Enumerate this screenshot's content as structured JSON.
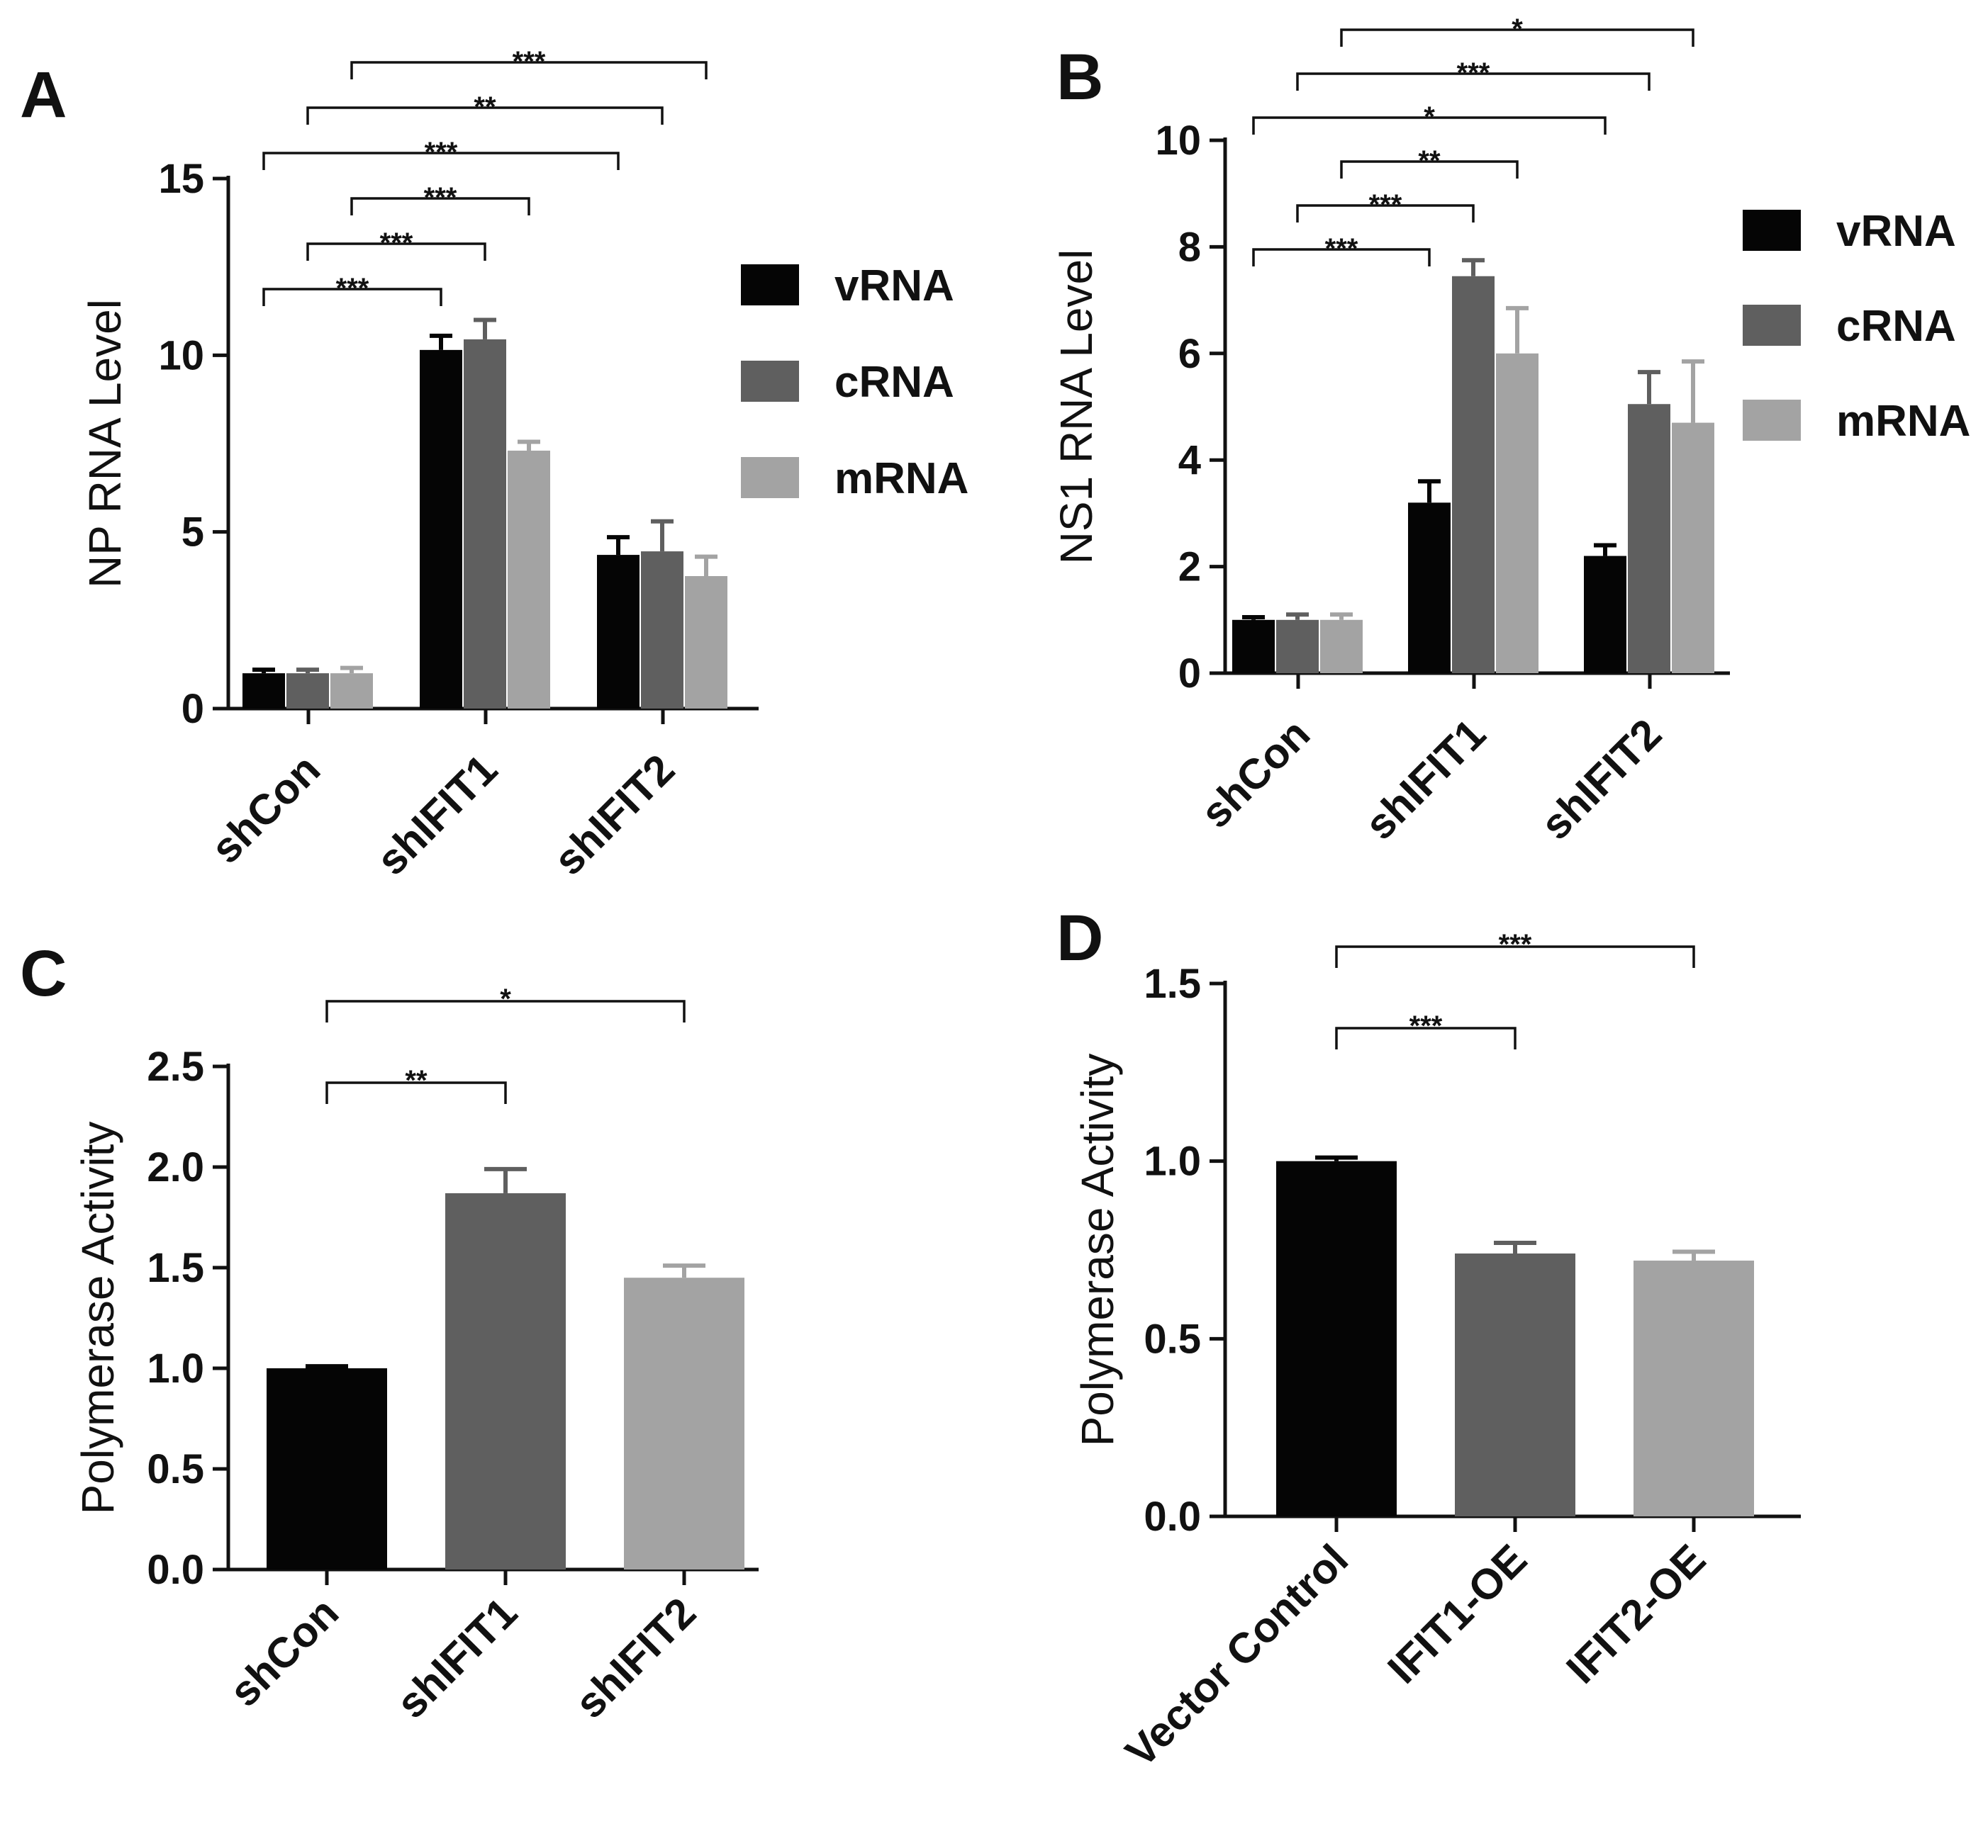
{
  "chart_data": [
    {
      "panel": "A",
      "type": "bar",
      "ylabel": "NP RNA Level",
      "ylim": [
        0,
        15
      ],
      "yticks": [
        0,
        5,
        10,
        15
      ],
      "ytick_labels": [
        "0",
        "5",
        "10",
        "15"
      ],
      "categories": [
        "shCon",
        "shIFIT1",
        "shIFIT2"
      ],
      "series": [
        {
          "name": "vRNA",
          "values": [
            1.0,
            10.15,
            4.35
          ],
          "errors": [
            0.1,
            0.4,
            0.5
          ]
        },
        {
          "name": "cRNA",
          "values": [
            1.0,
            10.45,
            4.45
          ],
          "errors": [
            0.1,
            0.55,
            0.85
          ]
        },
        {
          "name": "mRNA",
          "values": [
            1.0,
            7.3,
            3.75
          ],
          "errors": [
            0.15,
            0.25,
            0.55
          ]
        }
      ],
      "legend": {
        "entries": [
          "vRNA",
          "cRNA",
          "mRNA"
        ],
        "placement": "right"
      },
      "significance": [
        {
          "from": [
            0,
            0
          ],
          "to": [
            1,
            0
          ],
          "label": "***"
        },
        {
          "from": [
            0,
            1
          ],
          "to": [
            1,
            1
          ],
          "label": "***"
        },
        {
          "from": [
            0,
            2
          ],
          "to": [
            1,
            2
          ],
          "label": "***"
        },
        {
          "from": [
            0,
            0
          ],
          "to": [
            2,
            0
          ],
          "label": "***"
        },
        {
          "from": [
            0,
            1
          ],
          "to": [
            2,
            1
          ],
          "label": "**"
        },
        {
          "from": [
            0,
            2
          ],
          "to": [
            2,
            2
          ],
          "label": "***"
        }
      ]
    },
    {
      "panel": "B",
      "type": "bar",
      "ylabel": "NS1 RNA Level",
      "ylim": [
        0,
        10
      ],
      "yticks": [
        0,
        2,
        4,
        6,
        8,
        10
      ],
      "ytick_labels": [
        "0",
        "2",
        "4",
        "6",
        "8",
        "10"
      ],
      "categories": [
        "shCon",
        "shIFIT1",
        "shIFIT2"
      ],
      "series": [
        {
          "name": "vRNA",
          "values": [
            1.0,
            3.2,
            2.2
          ],
          "errors": [
            0.05,
            0.4,
            0.2
          ]
        },
        {
          "name": "cRNA",
          "values": [
            1.0,
            7.45,
            5.05
          ],
          "errors": [
            0.1,
            0.3,
            0.6
          ]
        },
        {
          "name": "mRNA",
          "values": [
            1.0,
            6.0,
            4.7
          ],
          "errors": [
            0.1,
            0.85,
            1.15
          ]
        }
      ],
      "legend": {
        "entries": [
          "vRNA",
          "cRNA",
          "mRNA"
        ],
        "placement": "right"
      },
      "significance": [
        {
          "from": [
            0,
            0
          ],
          "to": [
            1,
            0
          ],
          "label": "***"
        },
        {
          "from": [
            0,
            1
          ],
          "to": [
            1,
            1
          ],
          "label": "***"
        },
        {
          "from": [
            0,
            2
          ],
          "to": [
            1,
            2
          ],
          "label": "**"
        },
        {
          "from": [
            0,
            0
          ],
          "to": [
            2,
            0
          ],
          "label": "*"
        },
        {
          "from": [
            0,
            1
          ],
          "to": [
            2,
            1
          ],
          "label": "***"
        },
        {
          "from": [
            0,
            2
          ],
          "to": [
            2,
            2
          ],
          "label": "*"
        }
      ]
    },
    {
      "panel": "C",
      "type": "bar",
      "ylabel": "Polymerase Activity",
      "ylim": [
        0,
        2.5
      ],
      "yticks": [
        0,
        0.5,
        1.0,
        1.5,
        2.0,
        2.5
      ],
      "ytick_labels": [
        "0.0",
        "0.5",
        "1.0",
        "1.5",
        "2.0",
        "2.5"
      ],
      "categories": [
        "shCon",
        "shIFIT1",
        "shIFIT2"
      ],
      "values": [
        1.0,
        1.87,
        1.45
      ],
      "errors": [
        0.01,
        0.12,
        0.06
      ],
      "colors": [
        "#050505",
        "#5f5f5f",
        "#a3a3a3"
      ],
      "significance": [
        {
          "from": 0,
          "to": 1,
          "label": "**"
        },
        {
          "from": 0,
          "to": 2,
          "label": "*"
        }
      ]
    },
    {
      "panel": "D",
      "type": "bar",
      "ylabel": "Polymerase Activity",
      "ylim": [
        0,
        1.5
      ],
      "yticks": [
        0,
        0.5,
        1.0,
        1.5
      ],
      "ytick_labels": [
        "0.0",
        "0.5",
        "1.0",
        "1.5"
      ],
      "categories": [
        "Vector Control",
        "IFIT1-OE",
        "IFIT2-OE"
      ],
      "values": [
        1.0,
        0.74,
        0.72
      ],
      "errors": [
        0.01,
        0.03,
        0.025
      ],
      "colors": [
        "#050505",
        "#5f5f5f",
        "#a3a3a3"
      ],
      "significance": [
        {
          "from": 0,
          "to": 1,
          "label": "***"
        },
        {
          "from": 0,
          "to": 2,
          "label": "***"
        }
      ]
    }
  ],
  "series_colors": {
    "vRNA": "#050505",
    "cRNA": "#5f5f5f",
    "mRNA": "#a3a3a3"
  },
  "bar_colors": [
    "#050505",
    "#5f5f5f",
    "#a3a3a3"
  ]
}
